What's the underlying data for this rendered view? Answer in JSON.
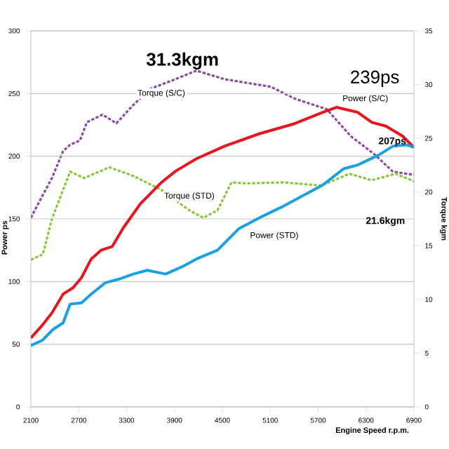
{
  "chart_data": {
    "type": "line",
    "xlabel": "Engine Speed r.p.m.",
    "ylabel": "Power ps",
    "y2label": "Torque kgm",
    "xlim": [
      2100,
      6900
    ],
    "xticks": [
      2100,
      2700,
      3300,
      3900,
      4500,
      5100,
      5700,
      6300,
      6900
    ],
    "ylim": [
      0,
      300
    ],
    "yticks": [
      0,
      50,
      100,
      150,
      200,
      250,
      300
    ],
    "y2lim": [
      0,
      35
    ],
    "y2ticks": [
      0,
      5,
      10,
      15,
      20,
      25,
      30,
      35
    ],
    "grid": "y",
    "series": [
      {
        "name": "Power (S/C)",
        "color": "#e8141e",
        "line_style": "solid",
        "x": [
          2100,
          2241,
          2364,
          2504,
          2627,
          2733,
          2856,
          2979,
          3120,
          3260,
          3471,
          3735,
          3911,
          4174,
          4526,
          4966,
          5405,
          5757,
          5932,
          6196,
          6372,
          6548,
          6759,
          6900
        ],
        "values": [
          55,
          65,
          75,
          90,
          95,
          103,
          118,
          125,
          128,
          143,
          162,
          179,
          188,
          198,
          208,
          218,
          226,
          235,
          239,
          235,
          227,
          224,
          216,
          207
        ]
      },
      {
        "name": "Power (STD)",
        "color": "#1ba1e2",
        "line_style": "solid",
        "x": [
          2100,
          2241,
          2381,
          2504,
          2592,
          2733,
          2856,
          3032,
          3207,
          3383,
          3559,
          3788,
          4000,
          4174,
          4438,
          4702,
          4966,
          5229,
          5493,
          5757,
          6020,
          6196,
          6460,
          6636,
          6812,
          6900
        ],
        "values": [
          49,
          53,
          62,
          67,
          82,
          83,
          90,
          99,
          102,
          106,
          109,
          106,
          112,
          118,
          125,
          142,
          151,
          159,
          168,
          177,
          190,
          193,
          201,
          208,
          209,
          207
        ]
      },
      {
        "name": "Torque (S/C)",
        "color": "#8e4a9e",
        "line_style": "dashed",
        "axis": "y2",
        "x": [
          2100,
          2241,
          2364,
          2504,
          2592,
          2715,
          2803,
          2997,
          3172,
          3383,
          3594,
          3911,
          4174,
          4526,
          5106,
          5405,
          5809,
          6108,
          6407,
          6636,
          6900
        ],
        "values": [
          17.6,
          19.6,
          21.3,
          23.8,
          24.4,
          24.8,
          26.5,
          27.2,
          26.4,
          28.1,
          29.6,
          30.5,
          31.3,
          30.5,
          29.8,
          28.7,
          27.7,
          25.2,
          23.5,
          21.9,
          21.6
        ]
      },
      {
        "name": "Torque (STD)",
        "color": "#8cc63f",
        "line_style": "dashed",
        "axis": "y2",
        "x": [
          2100,
          2250,
          2364,
          2592,
          2768,
          3084,
          3383,
          3735,
          4086,
          4262,
          4438,
          4614,
          4790,
          5264,
          5739,
          6090,
          6372,
          6671,
          6900
        ],
        "values": [
          13.7,
          14.2,
          17.5,
          21.9,
          21.3,
          22.3,
          21.5,
          20.2,
          18.3,
          17.6,
          18.3,
          20.9,
          20.8,
          20.9,
          20.6,
          21.7,
          21.1,
          21.7,
          21.0
        ]
      }
    ],
    "annotations": [
      {
        "text": "239ps",
        "x": 5932,
        "y": 239
      },
      {
        "text": "207ps",
        "x": 6900,
        "y": 207
      },
      "31.3kgm",
      "21.6kgm"
    ]
  }
}
